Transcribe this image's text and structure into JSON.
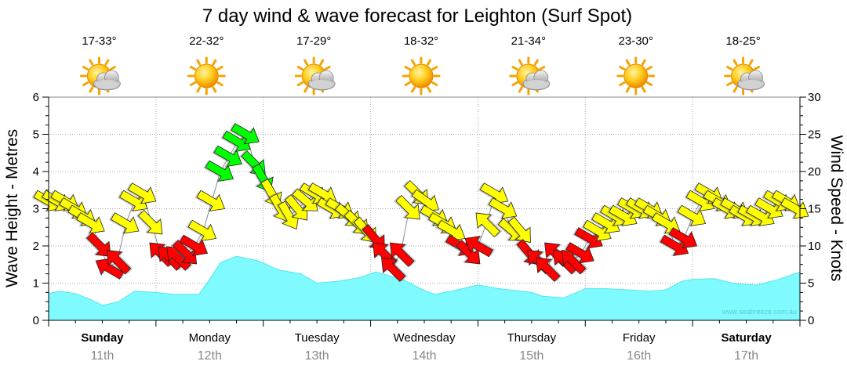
{
  "chart_data": {
    "type": "area",
    "title": "7 day wind & wave forecast for Leighton (Surf Spot)",
    "ylabel_left": "Wave Height - Metres",
    "ylabel_right": "Wind Speed - Knots",
    "ylim_left": [
      0,
      6
    ],
    "ylim_right": [
      0,
      30
    ],
    "y_ticks_left": [
      "0",
      "1",
      "2",
      "3",
      "4",
      "5",
      "6"
    ],
    "y_ticks_right": [
      "0",
      "5",
      "10",
      "15",
      "20",
      "25",
      "30"
    ],
    "watermark": "www.seabreeze.com.au",
    "days": [
      {
        "name": "Sunday",
        "date": "11th",
        "temp": "17-33°",
        "weather": "partly-cloudy",
        "bold": true
      },
      {
        "name": "Monday",
        "date": "12th",
        "temp": "22-32°",
        "weather": "sunny",
        "bold": false
      },
      {
        "name": "Tuesday",
        "date": "13th",
        "temp": "17-29°",
        "weather": "partly-cloudy",
        "bold": false
      },
      {
        "name": "Wednesday",
        "date": "14th",
        "temp": "18-32°",
        "weather": "sunny",
        "bold": false
      },
      {
        "name": "Thursday",
        "date": "15th",
        "temp": "21-34°",
        "weather": "partly-cloudy",
        "bold": false
      },
      {
        "name": "Friday",
        "date": "16th",
        "temp": "23-30°",
        "weather": "sunny",
        "bold": false
      },
      {
        "name": "Saturday",
        "date": "17th",
        "temp": "18-25°",
        "weather": "partly-cloudy",
        "bold": true
      }
    ],
    "wave_height_series": {
      "name": "Wave Height",
      "color": "#7ffbff",
      "t_days": [
        0,
        0.1,
        0.25,
        0.4,
        0.5,
        0.65,
        0.8,
        1,
        1.15,
        1.4,
        1.5,
        1.6,
        1.75,
        1.95,
        2.15,
        2.35,
        2.5,
        2.7,
        2.9,
        3.05,
        3.3,
        3.5,
        3.6,
        3.75,
        4.0,
        4.2,
        4.35,
        4.5,
        4.6,
        4.8,
        5.0,
        5.2,
        5.4,
        5.6,
        5.75,
        5.9,
        6.0,
        6.2,
        6.4,
        6.6,
        6.8,
        7.0
      ],
      "values": [
        0.72,
        0.78,
        0.72,
        0.55,
        0.4,
        0.5,
        0.78,
        0.75,
        0.7,
        0.7,
        1.1,
        1.55,
        1.72,
        1.6,
        1.35,
        1.25,
        1.0,
        1.05,
        1.15,
        1.3,
        1.1,
        0.8,
        0.7,
        0.78,
        0.95,
        0.85,
        0.8,
        0.75,
        0.65,
        0.6,
        0.85,
        0.85,
        0.82,
        0.78,
        0.82,
        1.05,
        1.1,
        1.12,
        0.98,
        0.95,
        1.1,
        1.3
      ]
    },
    "wind_series": {
      "name": "Wind Speed",
      "unit": "knots",
      "colors": {
        "light": "#ff0000",
        "moderate": "#ffff00",
        "strong": "#00ff00"
      },
      "t_days": [
        0.0,
        0.08,
        0.16,
        0.24,
        0.32,
        0.4,
        0.48,
        0.56,
        0.64,
        0.72,
        0.8,
        0.88,
        0.96,
        1.04,
        1.12,
        1.2,
        1.28,
        1.36,
        1.44,
        1.52,
        1.6,
        1.68,
        1.76,
        1.84,
        1.92,
        2.0,
        2.08,
        2.16,
        2.24,
        2.32,
        2.4,
        2.48,
        2.56,
        2.64,
        2.72,
        2.8,
        2.88,
        2.96,
        3.04,
        3.12,
        3.2,
        3.28,
        3.36,
        3.44,
        3.52,
        3.6,
        3.68,
        3.76,
        3.84,
        3.92,
        4.0,
        4.08,
        4.16,
        4.24,
        4.32,
        4.4,
        4.48,
        4.56,
        4.64,
        4.72,
        4.8,
        4.88,
        4.96,
        5.04,
        5.12,
        5.2,
        5.28,
        5.36,
        5.44,
        5.52,
        5.6,
        5.68,
        5.76,
        5.84,
        5.92,
        6.0,
        6.08,
        6.16,
        6.24,
        6.32,
        6.4,
        6.48,
        6.56,
        6.64,
        6.72,
        6.8,
        6.88,
        6.96
      ],
      "values": [
        16,
        16,
        16,
        15,
        14,
        13,
        10,
        7,
        8,
        13,
        16,
        17,
        13,
        9,
        8.5,
        8.5,
        9,
        10,
        12,
        16,
        20,
        22,
        24,
        25,
        21,
        19,
        17,
        15,
        14,
        15,
        16,
        17,
        17,
        15,
        15,
        14,
        13,
        12,
        11,
        9,
        7,
        9,
        15,
        17,
        16,
        14,
        13,
        12,
        10,
        9,
        10,
        13,
        17,
        15,
        12,
        12,
        9,
        8,
        7,
        9,
        8,
        8,
        9,
        11,
        12,
        13,
        14,
        14,
        15,
        15,
        15,
        14,
        13,
        10,
        11,
        14,
        16,
        17,
        16,
        15,
        15,
        14,
        14,
        14,
        15,
        16,
        16,
        15
      ],
      "directions_deg": [
        300,
        300,
        300,
        300,
        300,
        300,
        315,
        120,
        135,
        300,
        300,
        300,
        315,
        135,
        135,
        135,
        315,
        300,
        300,
        300,
        300,
        300,
        300,
        300,
        315,
        330,
        330,
        330,
        330,
        320,
        310,
        300,
        300,
        300,
        300,
        310,
        315,
        320,
        320,
        135,
        135,
        135,
        315,
        315,
        305,
        300,
        300,
        300,
        300,
        315,
        120,
        135,
        300,
        300,
        310,
        320,
        320,
        135,
        135,
        135,
        135,
        135,
        300,
        300,
        300,
        300,
        300,
        300,
        300,
        300,
        300,
        300,
        300,
        300,
        300,
        300,
        300,
        300,
        300,
        300,
        300,
        300,
        300,
        300,
        300,
        300,
        300,
        300
      ]
    }
  }
}
